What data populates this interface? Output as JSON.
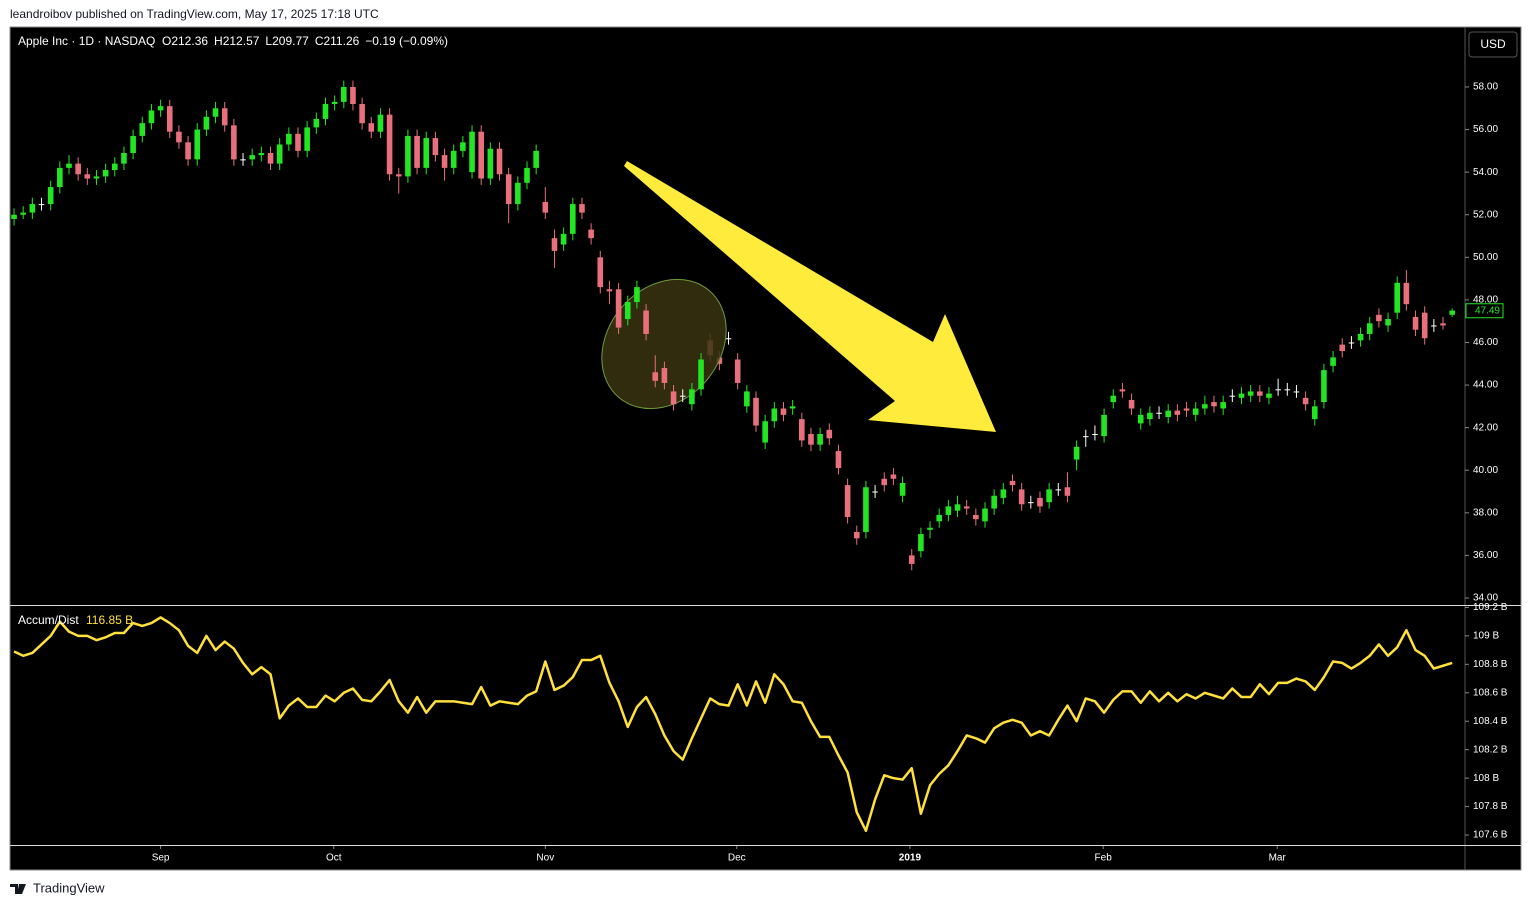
{
  "header": {
    "publisher": "leandroibov published on TradingView.com, May 17, 2025 17:18 UTC",
    "symbol": "Apple Inc · 1D · NASDAQ",
    "ohlc": [
      "O212.36",
      "H212.57",
      "L209.77",
      "C211.26"
    ],
    "change": "−0.19 (−0.09%)",
    "currency": "USD"
  },
  "footer": {
    "brand": "TradingView"
  },
  "chart_data": [
    {
      "type": "candlestick",
      "up_color": "#22e622",
      "down_color": "#e8707d",
      "doji_color": "#ffffff",
      "grid": false,
      "xlim": [
        -0.44,
        158.4
      ],
      "ylim": [
        33.67,
        60.77
      ],
      "yticks": [
        {
          "value": 34,
          "label": "34.00"
        },
        {
          "value": 36,
          "label": "36.00"
        },
        {
          "value": 38,
          "label": "38.00"
        },
        {
          "value": 40,
          "label": "40.00"
        },
        {
          "value": 42,
          "label": "42.00"
        },
        {
          "value": 44,
          "label": "44.00"
        },
        {
          "value": 46,
          "label": "46.00"
        },
        {
          "value": 48,
          "label": "48.00"
        },
        {
          "value": 50,
          "label": "50.00"
        },
        {
          "value": 52,
          "label": "52.00"
        },
        {
          "value": 54,
          "label": "54.00"
        },
        {
          "value": 56,
          "label": "56.00"
        },
        {
          "value": 58,
          "label": "58.00"
        }
      ],
      "last": 47.49,
      "candles": [
        [
          51.8,
          52.3,
          51.5,
          52.0
        ],
        [
          52.0,
          52.4,
          51.8,
          52.1
        ],
        [
          52.1,
          52.8,
          51.8,
          52.5
        ],
        [
          52.5,
          52.8,
          52.2,
          52.5
        ],
        [
          52.5,
          53.6,
          52.2,
          53.3
        ],
        [
          53.3,
          54.5,
          53.0,
          54.2
        ],
        [
          54.2,
          54.8,
          53.9,
          54.4
        ],
        [
          54.4,
          54.7,
          53.6,
          53.9
        ],
        [
          53.9,
          54.2,
          53.4,
          53.7
        ],
        [
          53.7,
          54.1,
          53.4,
          53.8
        ],
        [
          53.8,
          54.4,
          53.5,
          54.1
        ],
        [
          54.1,
          54.7,
          53.8,
          54.4
        ],
        [
          54.4,
          55.2,
          54.1,
          54.9
        ],
        [
          54.9,
          56.0,
          54.6,
          55.7
        ],
        [
          55.7,
          56.6,
          55.4,
          56.3
        ],
        [
          56.3,
          57.2,
          56.0,
          56.9
        ],
        [
          56.9,
          57.4,
          56.6,
          57.1
        ],
        [
          57.1,
          57.4,
          55.6,
          55.9
        ],
        [
          55.9,
          56.2,
          55.1,
          55.4
        ],
        [
          55.4,
          55.7,
          54.3,
          54.6
        ],
        [
          54.6,
          56.3,
          54.3,
          56.0
        ],
        [
          56.0,
          56.9,
          55.7,
          56.6
        ],
        [
          56.6,
          57.3,
          56.3,
          57.0
        ],
        [
          57.0,
          57.3,
          55.9,
          56.2
        ],
        [
          56.2,
          56.5,
          54.3,
          54.6
        ],
        [
          54.6,
          54.9,
          54.3,
          54.6
        ],
        [
          54.6,
          55.1,
          54.3,
          54.8
        ],
        [
          54.8,
          55.2,
          54.5,
          54.9
        ],
        [
          54.9,
          55.2,
          54.1,
          54.4
        ],
        [
          54.4,
          55.6,
          54.1,
          55.3
        ],
        [
          55.3,
          56.1,
          55.0,
          55.8
        ],
        [
          55.8,
          56.1,
          54.7,
          55.0
        ],
        [
          55.0,
          56.4,
          54.7,
          56.1
        ],
        [
          56.1,
          56.8,
          55.8,
          56.5
        ],
        [
          56.5,
          57.5,
          56.2,
          57.2
        ],
        [
          57.2,
          57.6,
          56.9,
          57.3
        ],
        [
          57.3,
          58.3,
          57.0,
          58.0
        ],
        [
          58.0,
          58.3,
          56.9,
          57.2
        ],
        [
          57.2,
          57.5,
          56.0,
          56.3
        ],
        [
          56.3,
          56.6,
          55.6,
          55.9
        ],
        [
          55.9,
          57.0,
          55.6,
          56.7
        ],
        [
          56.7,
          57.0,
          53.6,
          53.9
        ],
        [
          53.9,
          54.2,
          53.0,
          53.8
        ],
        [
          53.8,
          56.0,
          53.5,
          55.7
        ],
        [
          55.7,
          56.0,
          53.9,
          54.2
        ],
        [
          54.2,
          55.9,
          53.9,
          55.6
        ],
        [
          55.6,
          55.9,
          54.5,
          54.8
        ],
        [
          54.8,
          55.1,
          53.6,
          54.2
        ],
        [
          54.2,
          55.3,
          53.9,
          55.0
        ],
        [
          55.0,
          55.7,
          54.7,
          55.4
        ],
        [
          54.0,
          56.2,
          53.7,
          55.9
        ],
        [
          55.9,
          56.2,
          53.4,
          53.7
        ],
        [
          53.7,
          55.4,
          53.4,
          55.1
        ],
        [
          55.1,
          55.4,
          53.6,
          53.9
        ],
        [
          53.9,
          54.2,
          51.6,
          52.5
        ],
        [
          52.5,
          53.8,
          52.2,
          53.5
        ],
        [
          53.5,
          54.5,
          53.2,
          54.2
        ],
        [
          54.2,
          55.3,
          53.9,
          55.0
        ],
        [
          52.6,
          53.3,
          51.8,
          52.1
        ],
        [
          50.9,
          51.3,
          49.5,
          50.3
        ],
        [
          50.6,
          51.4,
          50.3,
          51.1
        ],
        [
          51.1,
          52.8,
          50.8,
          52.5
        ],
        [
          52.5,
          52.8,
          51.8,
          52.1
        ],
        [
          51.3,
          51.6,
          50.6,
          50.9
        ],
        [
          50.0,
          50.3,
          48.3,
          48.6
        ],
        [
          48.5,
          48.9,
          47.8,
          48.4
        ],
        [
          48.5,
          48.8,
          46.4,
          46.7
        ],
        [
          47.1,
          48.2,
          46.8,
          47.9
        ],
        [
          47.9,
          48.9,
          47.6,
          48.6
        ],
        [
          47.5,
          47.8,
          46.1,
          46.4
        ],
        [
          44.6,
          45.4,
          43.9,
          44.2
        ],
        [
          44.8,
          45.1,
          43.8,
          44.1
        ],
        [
          43.7,
          44.0,
          42.8,
          43.1
        ],
        [
          43.5,
          43.8,
          43.2,
          43.5
        ],
        [
          43.1,
          44.1,
          42.8,
          43.8
        ],
        [
          43.8,
          45.5,
          43.5,
          45.2
        ],
        [
          46.1,
          46.4,
          45.1,
          45.4
        ],
        [
          45.3,
          45.6,
          44.7,
          45.0
        ],
        [
          46.2,
          46.5,
          45.9,
          46.2
        ],
        [
          45.2,
          45.5,
          43.8,
          44.1
        ],
        [
          43.0,
          44.0,
          42.7,
          43.7
        ],
        [
          43.4,
          43.7,
          41.8,
          42.1
        ],
        [
          41.3,
          42.6,
          41.0,
          42.3
        ],
        [
          42.3,
          43.2,
          42.0,
          42.9
        ],
        [
          42.9,
          43.2,
          42.3,
          42.6
        ],
        [
          42.9,
          43.3,
          42.6,
          43.0
        ],
        [
          42.4,
          42.7,
          41.1,
          41.4
        ],
        [
          41.7,
          42.0,
          40.9,
          41.2
        ],
        [
          41.2,
          42.0,
          40.9,
          41.7
        ],
        [
          41.9,
          42.2,
          41.2,
          41.5
        ],
        [
          40.9,
          41.2,
          39.8,
          40.1
        ],
        [
          39.3,
          39.6,
          37.5,
          37.8
        ],
        [
          37.1,
          37.4,
          36.5,
          36.8
        ],
        [
          37.1,
          39.5,
          36.8,
          39.2
        ],
        [
          39.0,
          39.3,
          38.7,
          39.0
        ],
        [
          39.6,
          39.9,
          39.0,
          39.3
        ],
        [
          39.8,
          40.1,
          39.3,
          39.6
        ],
        [
          38.8,
          39.7,
          38.5,
          39.4
        ],
        [
          36.0,
          36.3,
          35.3,
          35.6
        ],
        [
          36.2,
          37.3,
          35.9,
          37.0
        ],
        [
          37.2,
          37.6,
          36.8,
          37.3
        ],
        [
          37.6,
          38.2,
          37.3,
          37.9
        ],
        [
          37.9,
          38.6,
          37.6,
          38.3
        ],
        [
          38.1,
          38.8,
          37.8,
          38.4
        ],
        [
          38.3,
          38.6,
          37.9,
          38.2
        ],
        [
          37.9,
          38.2,
          37.4,
          37.7
        ],
        [
          37.6,
          38.5,
          37.3,
          38.2
        ],
        [
          38.2,
          39.1,
          37.9,
          38.8
        ],
        [
          38.7,
          39.4,
          38.4,
          39.1
        ],
        [
          39.5,
          39.8,
          39.0,
          39.3
        ],
        [
          39.1,
          39.4,
          38.1,
          38.4
        ],
        [
          38.5,
          38.8,
          38.2,
          38.5
        ],
        [
          38.7,
          39.0,
          38.0,
          38.3
        ],
        [
          38.5,
          39.4,
          38.2,
          39.1
        ],
        [
          39.1,
          39.4,
          38.8,
          39.1
        ],
        [
          39.2,
          39.9,
          38.5,
          38.8
        ],
        [
          40.5,
          41.4,
          40.0,
          41.1
        ],
        [
          41.6,
          41.9,
          41.1,
          41.6
        ],
        [
          41.7,
          42.1,
          41.4,
          41.7
        ],
        [
          41.6,
          42.9,
          41.3,
          42.6
        ],
        [
          43.2,
          43.8,
          42.9,
          43.5
        ],
        [
          43.8,
          44.1,
          43.4,
          43.7
        ],
        [
          43.3,
          43.6,
          42.6,
          42.9
        ],
        [
          42.2,
          42.9,
          41.9,
          42.6
        ],
        [
          42.4,
          43.0,
          42.1,
          42.7
        ],
        [
          42.7,
          43.0,
          42.4,
          42.7
        ],
        [
          42.5,
          43.1,
          42.2,
          42.8
        ],
        [
          42.8,
          43.1,
          42.3,
          42.6
        ],
        [
          42.9,
          43.2,
          42.5,
          42.8
        ],
        [
          42.6,
          43.2,
          42.3,
          42.9
        ],
        [
          42.9,
          43.5,
          42.6,
          43.1
        ],
        [
          43.2,
          43.5,
          42.7,
          43.0
        ],
        [
          42.9,
          43.5,
          42.6,
          43.2
        ],
        [
          43.5,
          43.8,
          43.2,
          43.5
        ],
        [
          43.4,
          43.9,
          43.1,
          43.6
        ],
        [
          43.5,
          44.0,
          43.2,
          43.7
        ],
        [
          43.7,
          44.0,
          43.2,
          43.5
        ],
        [
          43.4,
          43.9,
          43.1,
          43.6
        ],
        [
          43.8,
          44.3,
          43.5,
          43.8
        ],
        [
          43.8,
          44.1,
          43.5,
          43.8
        ],
        [
          43.7,
          44.0,
          43.4,
          43.7
        ],
        [
          43.4,
          43.7,
          42.8,
          43.1
        ],
        [
          42.4,
          43.3,
          42.1,
          43.0
        ],
        [
          43.2,
          45.0,
          42.9,
          44.7
        ],
        [
          44.9,
          45.6,
          44.6,
          45.3
        ],
        [
          45.9,
          46.2,
          45.3,
          45.6
        ],
        [
          46.0,
          46.3,
          45.7,
          46.0
        ],
        [
          46.1,
          46.7,
          45.8,
          46.4
        ],
        [
          46.4,
          47.2,
          46.1,
          46.9
        ],
        [
          47.3,
          47.6,
          46.7,
          47.0
        ],
        [
          46.8,
          47.4,
          46.5,
          47.1
        ],
        [
          47.4,
          49.1,
          47.1,
          48.8
        ],
        [
          48.8,
          49.4,
          47.5,
          47.8
        ],
        [
          47.2,
          47.5,
          46.3,
          46.6
        ],
        [
          47.4,
          47.7,
          45.9,
          46.2
        ],
        [
          46.8,
          47.1,
          46.5,
          46.8
        ],
        [
          46.9,
          47.2,
          46.6,
          46.8
        ],
        [
          47.3,
          47.6,
          47.2,
          47.5
        ]
      ]
    },
    {
      "type": "line",
      "name": "Accum/Dist",
      "value_text": "116.85 B",
      "color": "#ffe03c",
      "grid": false,
      "xlim": [
        -0.44,
        158.4
      ],
      "ylim": [
        107.53,
        109.21
      ],
      "yticks": [
        {
          "value": 107.6,
          "label": "107.6 B"
        },
        {
          "value": 107.8,
          "label": "107.8 B"
        },
        {
          "value": 108,
          "label": "108 B"
        },
        {
          "value": 108.2,
          "label": "108.2 B"
        },
        {
          "value": 108.4,
          "label": "108.4 B"
        },
        {
          "value": 108.6,
          "label": "108.6 B"
        },
        {
          "value": 108.8,
          "label": "108.8 B"
        },
        {
          "value": 109,
          "label": "109 B"
        },
        {
          "value": 109.2,
          "label": "109.2 B"
        }
      ],
      "xticks": [
        {
          "value": 16,
          "label": "Sep"
        },
        {
          "value": 34.9,
          "label": "Oct"
        },
        {
          "value": 58,
          "label": "Nov"
        },
        {
          "value": 78.9,
          "label": "Dec"
        },
        {
          "value": 97.8,
          "label": "2019"
        },
        {
          "value": 118.9,
          "label": "Feb"
        },
        {
          "value": 137.9,
          "label": "Mar"
        }
      ],
      "values": [
        108.89,
        108.86,
        108.88,
        108.94,
        109.0,
        109.1,
        109.03,
        109.0,
        109.0,
        108.97,
        108.99,
        109.02,
        109.02,
        109.09,
        109.07,
        109.09,
        109.13,
        109.09,
        109.04,
        108.93,
        108.88,
        109.0,
        108.9,
        108.96,
        108.91,
        108.81,
        108.73,
        108.78,
        108.73,
        108.42,
        108.51,
        108.56,
        108.5,
        108.5,
        108.58,
        108.54,
        108.6,
        108.63,
        108.55,
        108.54,
        108.61,
        108.69,
        108.54,
        108.46,
        108.57,
        108.46,
        108.54,
        108.54,
        108.54,
        108.53,
        108.52,
        108.64,
        108.51,
        108.54,
        108.53,
        108.52,
        108.58,
        108.61,
        108.82,
        108.62,
        108.65,
        108.71,
        108.83,
        108.83,
        108.86,
        108.67,
        108.54,
        108.36,
        108.5,
        108.57,
        108.45,
        108.3,
        108.19,
        108.13,
        108.28,
        108.42,
        108.56,
        108.52,
        108.51,
        108.66,
        108.51,
        108.68,
        108.53,
        108.73,
        108.66,
        108.54,
        108.53,
        108.4,
        108.29,
        108.29,
        108.16,
        108.04,
        107.76,
        107.63,
        107.85,
        108.02,
        108.0,
        107.99,
        108.07,
        107.75,
        107.95,
        108.03,
        108.09,
        108.19,
        108.3,
        108.28,
        108.25,
        108.35,
        108.39,
        108.41,
        108.39,
        108.3,
        108.33,
        108.3,
        108.41,
        108.51,
        108.4,
        108.56,
        108.54,
        108.46,
        108.55,
        108.61,
        108.61,
        108.53,
        108.61,
        108.54,
        108.6,
        108.54,
        108.59,
        108.56,
        108.6,
        108.58,
        108.56,
        108.63,
        108.57,
        108.57,
        108.66,
        108.59,
        108.67,
        108.67,
        108.7,
        108.68,
        108.62,
        108.71,
        108.82,
        108.81,
        108.77,
        108.81,
        108.86,
        108.94,
        108.86,
        108.92,
        109.04,
        108.9,
        108.86,
        108.77,
        108.79,
        108.81
      ]
    }
  ]
}
